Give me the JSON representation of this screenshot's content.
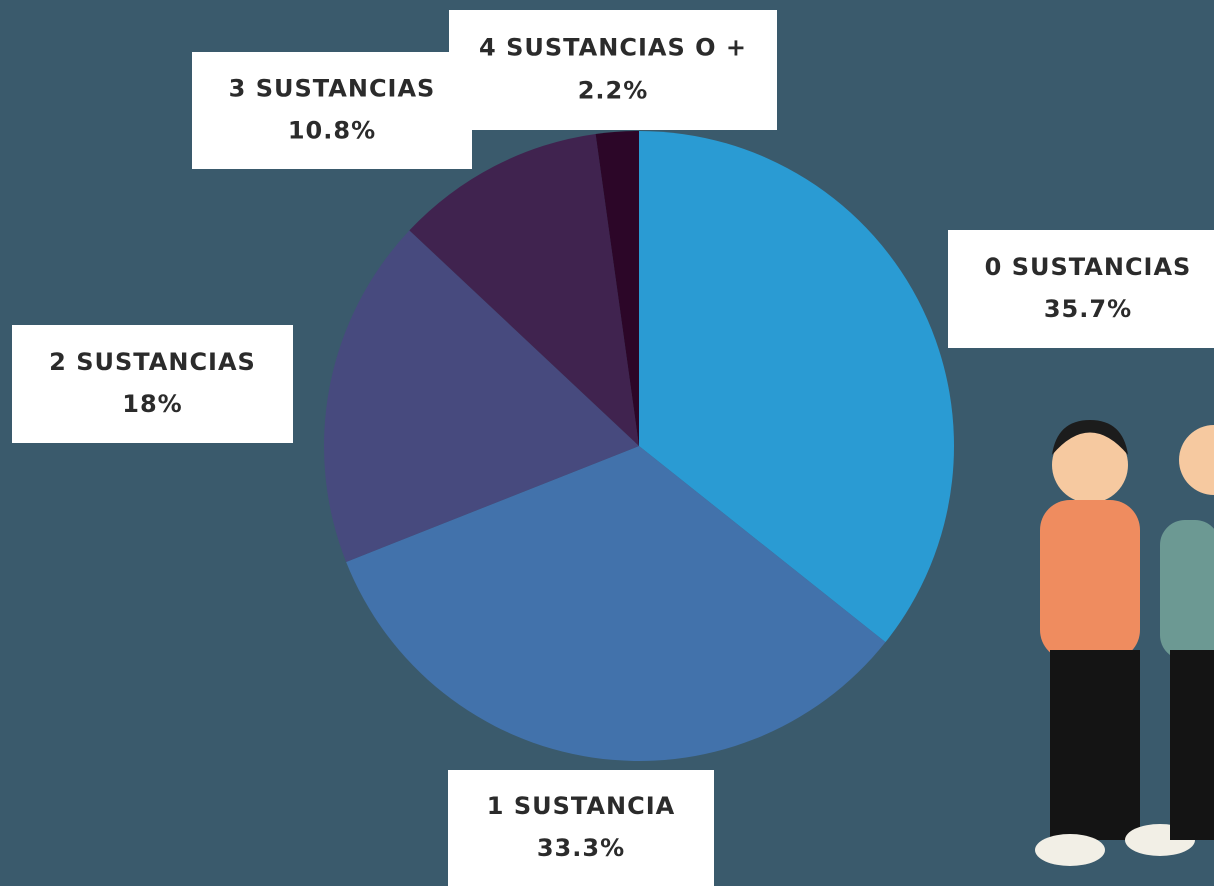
{
  "chart_data": {
    "type": "pie",
    "categories": [
      "0 SUSTANCIAS",
      "1 SUSTANCIA",
      "2 SUSTANCIAS",
      "3 SUSTANCIAS",
      "4 SUSTANCIAS O +"
    ],
    "values": [
      35.7,
      33.3,
      18,
      10.8,
      2.2
    ],
    "value_labels": [
      "35.7%",
      "33.3%",
      "18%",
      "10.8%",
      "2.2%"
    ],
    "colors": [
      "#2a9bd3",
      "#4272ab",
      "#474a7e",
      "#40234f",
      "#2c0628"
    ]
  }
}
